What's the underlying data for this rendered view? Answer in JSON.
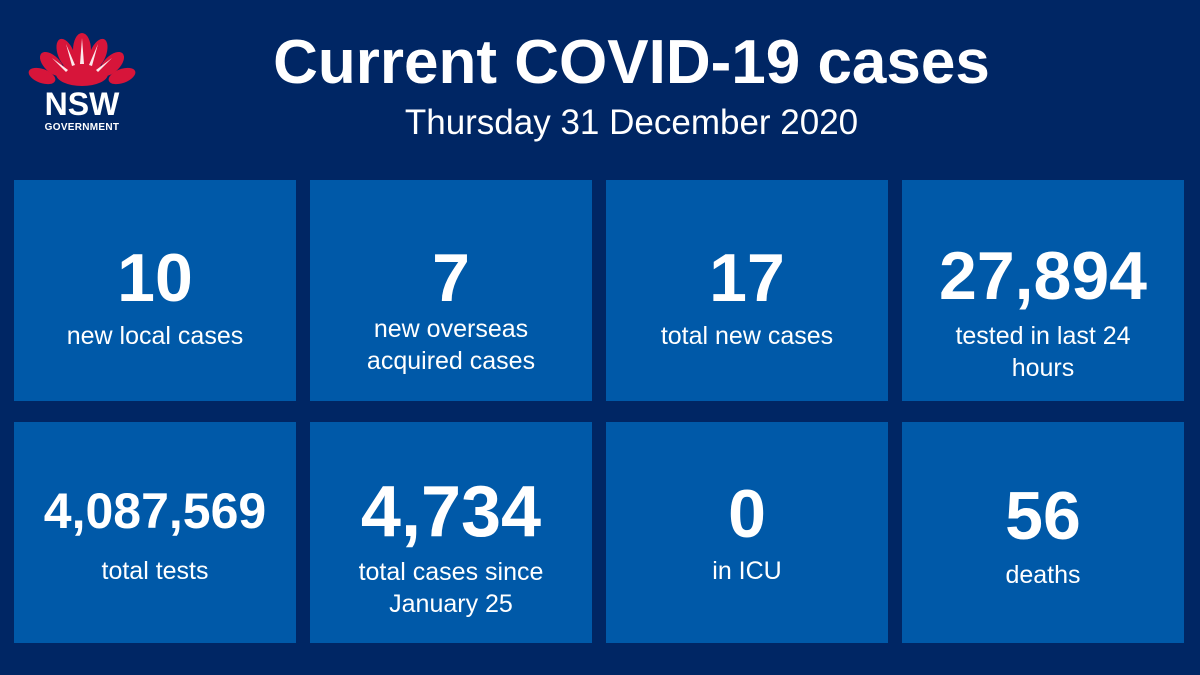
{
  "header": {
    "title": "Current COVID-19 cases",
    "date": "Thursday 31 December 2020"
  },
  "logo": {
    "icon": "waratah-icon",
    "wordmark": "NSW",
    "subtext": "GOVERNMENT",
    "flower_color": "#D7153A"
  },
  "colors": {
    "background": "#002664",
    "tile": "#0059A8",
    "text": "#FFFFFF"
  },
  "stats": [
    {
      "value": "10",
      "label": "new local cases"
    },
    {
      "value": "7",
      "label": "new overseas acquired cases"
    },
    {
      "value": "17",
      "label": "total new cases"
    },
    {
      "value": "27,894",
      "label": "tested in last 24 hours"
    },
    {
      "value": "4,087,569",
      "label": "total tests"
    },
    {
      "value": "4,734",
      "label": "total cases since January 25"
    },
    {
      "value": "0",
      "label": "in ICU"
    },
    {
      "value": "56",
      "label": "deaths"
    }
  ]
}
